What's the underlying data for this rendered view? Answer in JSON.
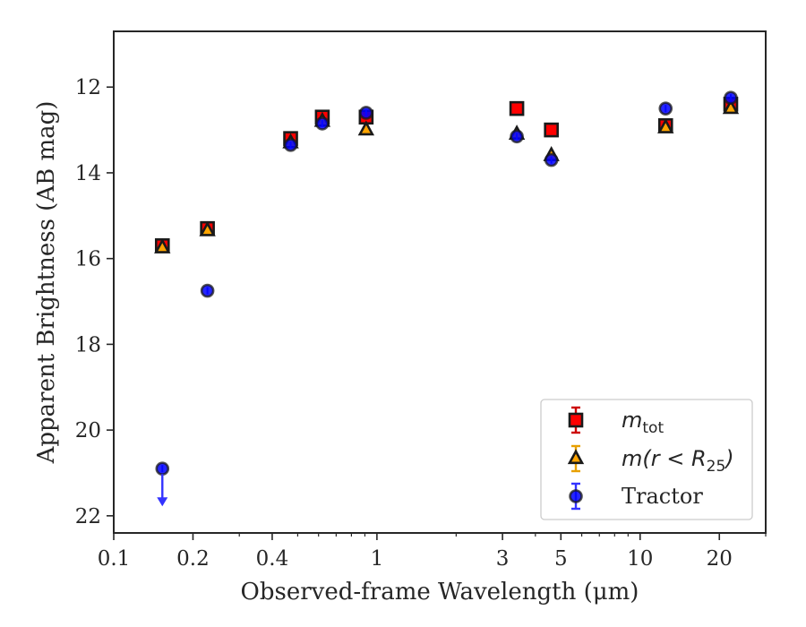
{
  "chart_data": {
    "type": "scatter",
    "title": "",
    "xlabel": "Observed-frame Wavelength (μm)",
    "ylabel": "Apparent Brightness (AB mag)",
    "xscale": "log",
    "xlim": [
      0.1,
      30
    ],
    "ylim": [
      22.4,
      10.7
    ],
    "y_inverted": true,
    "grid": false,
    "legend_position": "lower-right",
    "x_ticks": [
      0.1,
      0.2,
      0.4,
      1,
      3,
      5,
      10,
      20
    ],
    "x_tick_labels": [
      "0.1",
      "0.2",
      "0.4",
      "1",
      "3",
      "5",
      "10",
      "20"
    ],
    "y_ticks": [
      12,
      14,
      16,
      18,
      20,
      22
    ],
    "y_tick_labels": [
      "12",
      "14",
      "16",
      "18",
      "20",
      "22"
    ],
    "series": [
      {
        "name": "m_tot",
        "marker": "square",
        "color": "#ff0000",
        "edge_color": "#1a1a1a",
        "error_color": "#cc0000",
        "x": [
          0.153,
          0.227,
          0.47,
          0.62,
          0.91,
          3.4,
          4.6,
          12.5,
          22.1
        ],
        "y": [
          15.7,
          15.3,
          13.2,
          12.7,
          12.7,
          12.5,
          13.0,
          12.9,
          12.4
        ]
      },
      {
        "name": "m(r < R25)",
        "marker": "triangle",
        "color": "#ffa500",
        "edge_color": "#1a1a1a",
        "error_color": "#e8a000",
        "x": [
          0.153,
          0.227,
          0.47,
          0.62,
          0.91,
          3.4,
          4.6,
          12.5,
          22.1
        ],
        "y": [
          15.75,
          15.35,
          13.3,
          12.8,
          13.0,
          13.1,
          13.6,
          12.95,
          12.5
        ]
      },
      {
        "name": "Tractor",
        "marker": "circle",
        "color": "#0000ff",
        "edge_color": "#1a1a1a",
        "error_color": "#3333ff",
        "x": [
          0.153,
          0.227,
          0.47,
          0.62,
          0.91,
          3.4,
          4.6,
          12.5,
          22.1
        ],
        "y": [
          20.9,
          16.75,
          13.35,
          12.85,
          12.6,
          13.15,
          13.7,
          12.5,
          12.25
        ],
        "upper_limit": [
          true,
          false,
          false,
          false,
          false,
          false,
          false,
          false,
          false
        ]
      }
    ],
    "legend": {
      "items": [
        {
          "label": "m",
          "sub": "tot"
        },
        {
          "label": "m(r < R",
          "sub": "25",
          "tail": ")"
        },
        {
          "label": "Tractor"
        }
      ]
    }
  }
}
